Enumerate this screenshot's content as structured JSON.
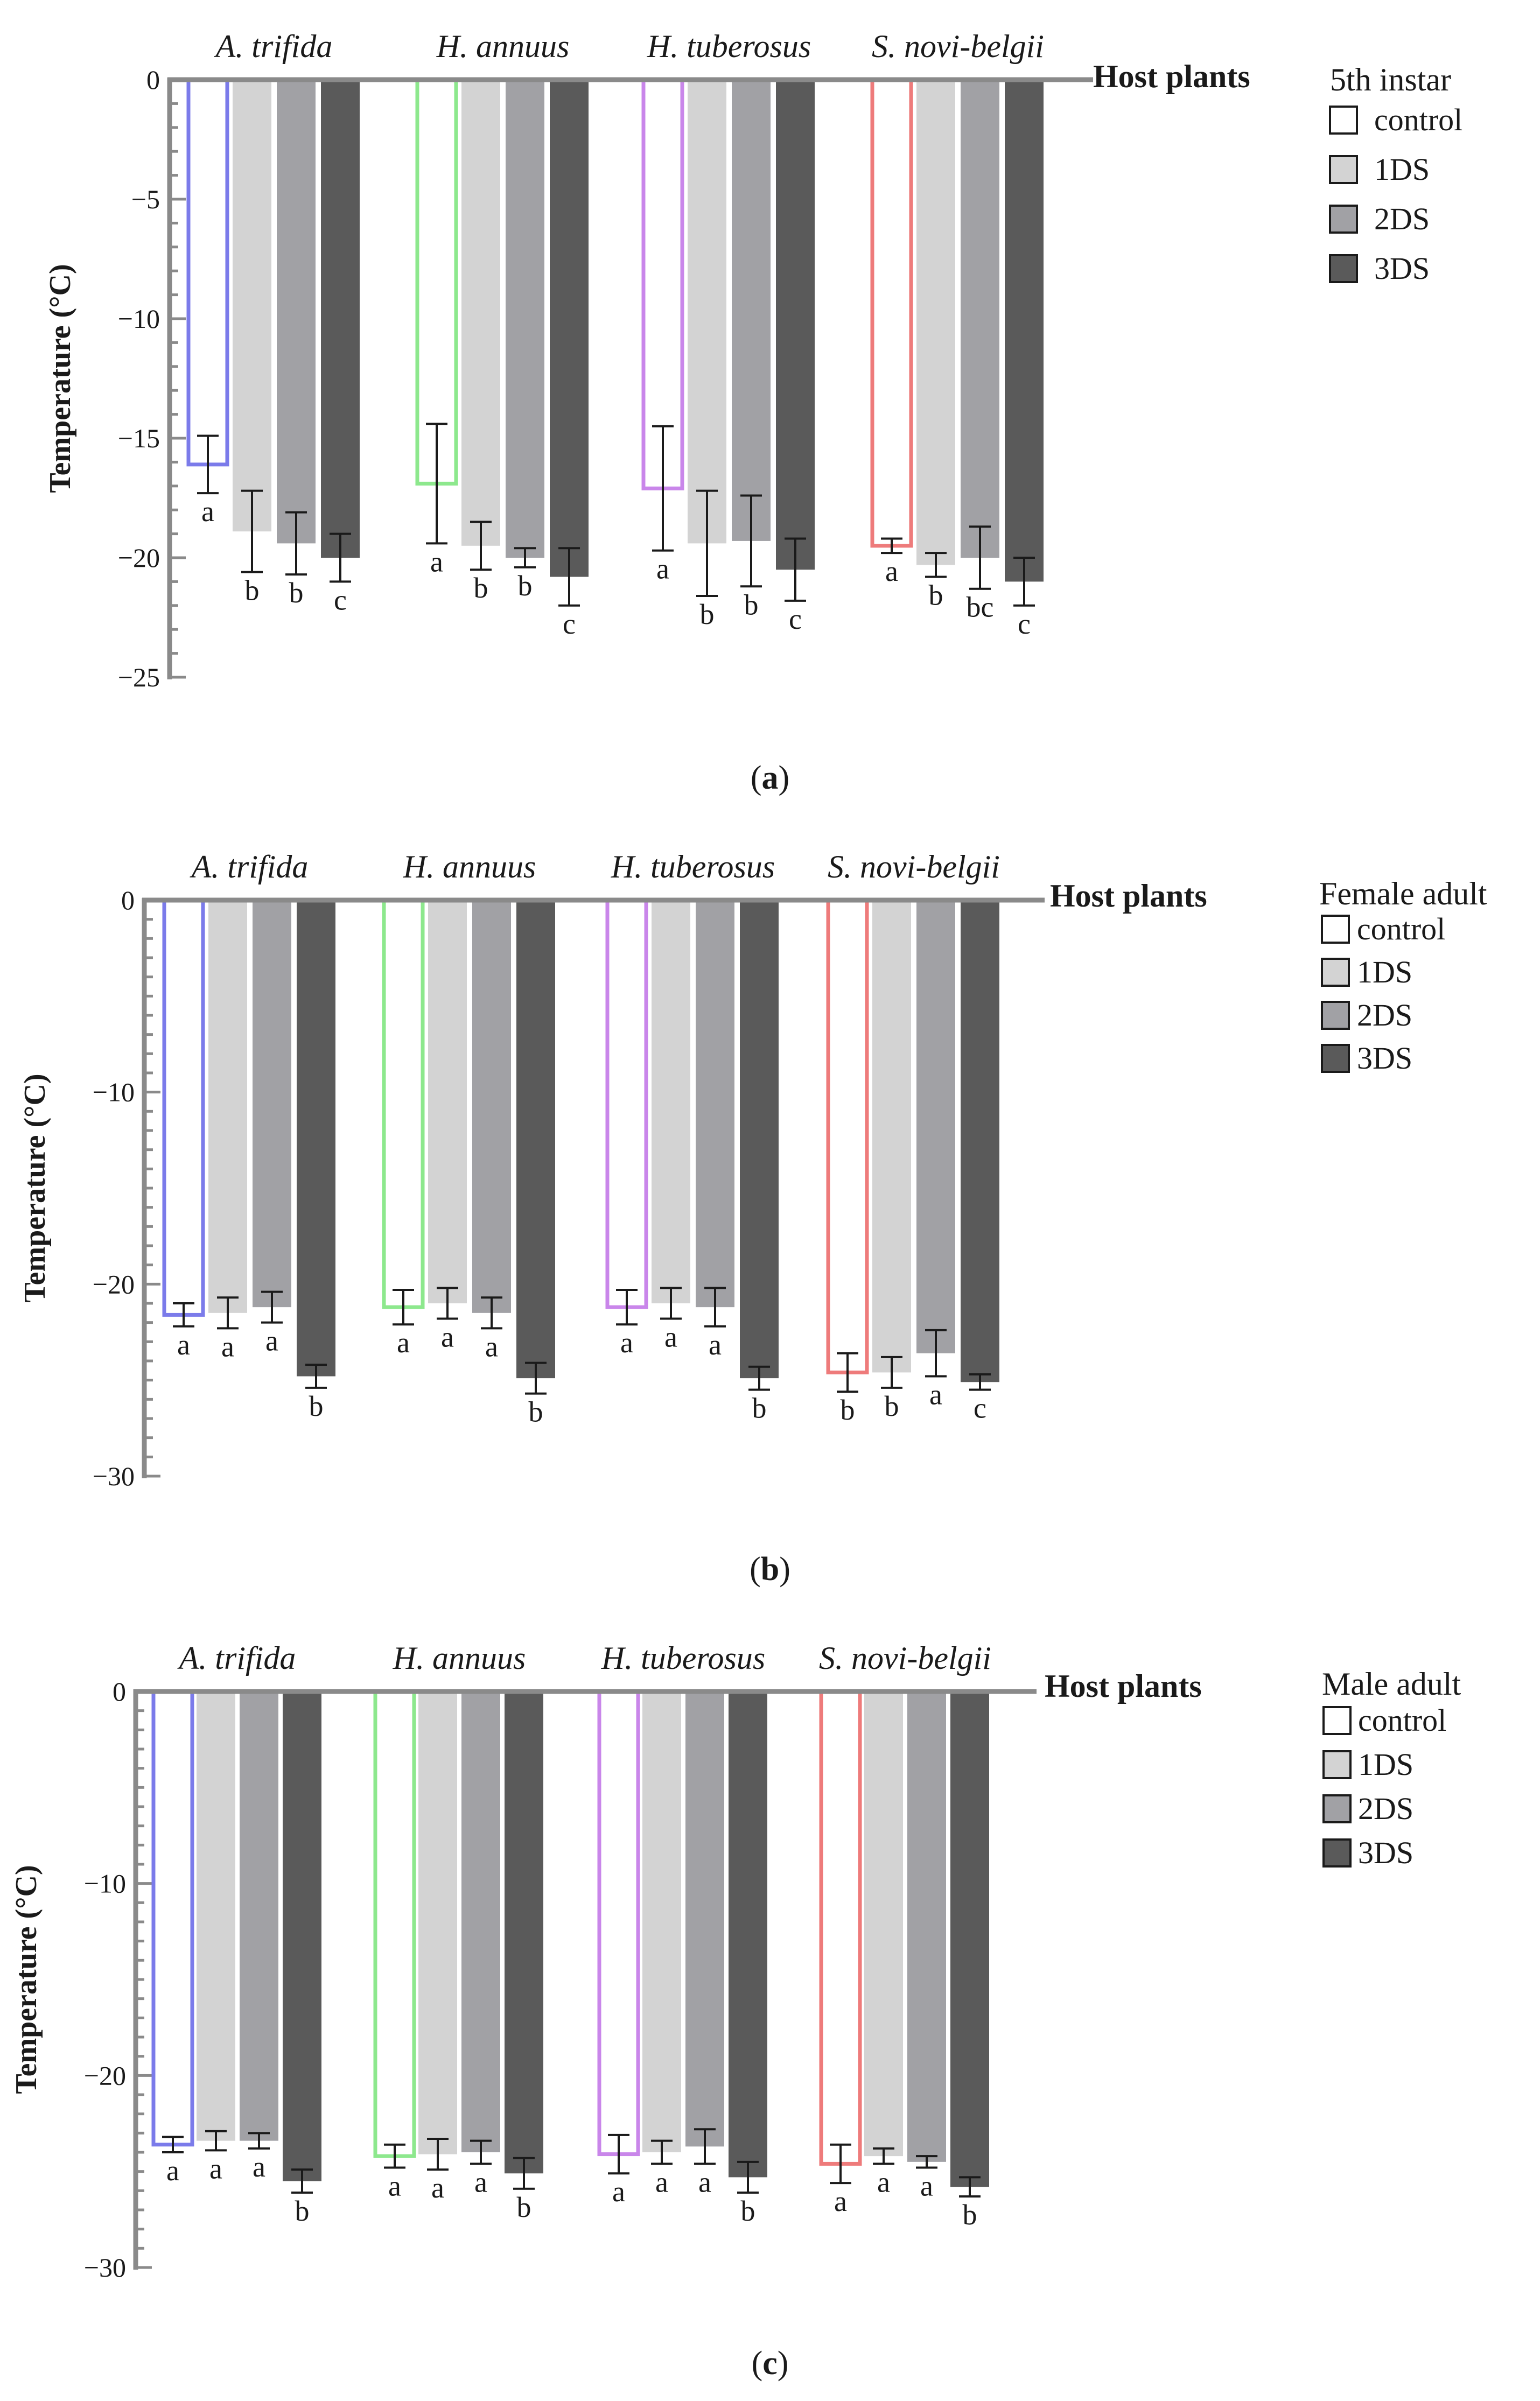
{
  "chart_data": [
    {
      "type": "bar",
      "panel_label": "(a)",
      "panel_letter": "a",
      "xlabel": "Host plants",
      "ylabel": "Temperature (°C)",
      "ylim": [
        -25,
        0
      ],
      "major_ticks": [
        0,
        -5,
        -10,
        -15,
        -20,
        -25
      ],
      "tick_labels": [
        "0",
        "−5",
        "−10",
        "−15",
        "−20",
        "−25"
      ],
      "categories": [
        "A. trifida",
        "H. annuus",
        "H. tuberosus",
        "S. novi-belgii"
      ],
      "legend_title": "5th instar",
      "series": [
        {
          "name": "control",
          "values": [
            -16.1,
            -16.9,
            -17.1,
            -19.5
          ],
          "errors": [
            1.2,
            2.5,
            2.6,
            0.3
          ],
          "letters": [
            "a",
            "a",
            "a",
            "a"
          ]
        },
        {
          "name": "1DS",
          "values": [
            -18.9,
            -19.5,
            -19.4,
            -20.3
          ],
          "errors": [
            1.7,
            1.0,
            2.2,
            0.5
          ],
          "letters": [
            "b",
            "b",
            "b",
            "b"
          ]
        },
        {
          "name": "2DS",
          "values": [
            -19.4,
            -20.0,
            -19.3,
            -20.0
          ],
          "errors": [
            1.3,
            0.4,
            1.9,
            1.3
          ],
          "letters": [
            "b",
            "b",
            "b",
            "bc"
          ]
        },
        {
          "name": "3DS",
          "values": [
            -20.0,
            -20.8,
            -20.5,
            -21.0
          ],
          "errors": [
            1.0,
            1.2,
            1.3,
            1.0
          ],
          "letters": [
            "c",
            "c",
            "c",
            "c"
          ]
        }
      ],
      "control_outline_colors": [
        "#7b7bea",
        "#8de88d",
        "#c986ea",
        "#ee7b7b"
      ],
      "fill_colors": [
        "#ffffff",
        "#d3d3d3",
        "#a1a1a5",
        "#5a5a5a"
      ]
    },
    {
      "type": "bar",
      "panel_label": "(b)",
      "panel_letter": "b",
      "xlabel": "Host plants",
      "ylabel": "Temperature (°C)",
      "ylim": [
        -30,
        0
      ],
      "major_ticks": [
        0,
        -10,
        -20,
        -30
      ],
      "tick_labels": [
        "0",
        "−10",
        "−20",
        "−30"
      ],
      "categories": [
        "A. trifida",
        "H. annuus",
        "H. tuberosus",
        "S. novi-belgii"
      ],
      "legend_title": "Female adult",
      "series": [
        {
          "name": "control",
          "values": [
            -21.6,
            -21.2,
            -21.2,
            -24.6
          ],
          "errors": [
            0.6,
            0.9,
            0.9,
            1.0
          ],
          "letters": [
            "a",
            "a",
            "a",
            "b"
          ]
        },
        {
          "name": "1DS",
          "values": [
            -21.5,
            -21.0,
            -21.0,
            -24.6
          ],
          "errors": [
            0.8,
            0.8,
            0.8,
            0.8
          ],
          "letters": [
            "a",
            "a",
            "a",
            "b"
          ]
        },
        {
          "name": "2DS",
          "values": [
            -21.2,
            -21.5,
            -21.2,
            -23.6
          ],
          "errors": [
            0.8,
            0.8,
            1.0,
            1.2
          ],
          "letters": [
            "a",
            "a",
            "a",
            "a"
          ]
        },
        {
          "name": "3DS",
          "values": [
            -24.8,
            -24.9,
            -24.9,
            -25.1
          ],
          "errors": [
            0.6,
            0.8,
            0.6,
            0.4
          ],
          "letters": [
            "b",
            "b",
            "b",
            "c"
          ]
        }
      ],
      "control_outline_colors": [
        "#7b7bea",
        "#8de88d",
        "#c986ea",
        "#ee7b7b"
      ],
      "fill_colors": [
        "#ffffff",
        "#d3d3d3",
        "#a1a1a5",
        "#5a5a5a"
      ]
    },
    {
      "type": "bar",
      "panel_label": "(c)",
      "panel_letter": "c",
      "xlabel": "Host plants",
      "ylabel": "Temperature (°C)",
      "ylim": [
        -30,
        0
      ],
      "major_ticks": [
        0,
        -10,
        -20,
        -30
      ],
      "tick_labels": [
        "0",
        "−10",
        "−20",
        "−30"
      ],
      "categories": [
        "A. trifida",
        "H. annuus",
        "H. tuberosus",
        "S. novi-belgii"
      ],
      "legend_title": "Male adult",
      "series": [
        {
          "name": "control",
          "values": [
            -23.6,
            -24.2,
            -24.1,
            -24.6
          ],
          "errors": [
            0.4,
            0.6,
            1.0,
            1.0
          ],
          "letters": [
            "a",
            "a",
            "a",
            "a"
          ]
        },
        {
          "name": "1DS",
          "values": [
            -23.4,
            -24.1,
            -24.0,
            -24.2
          ],
          "errors": [
            0.5,
            0.8,
            0.6,
            0.4
          ],
          "letters": [
            "a",
            "a",
            "a",
            "a"
          ]
        },
        {
          "name": "2DS",
          "values": [
            -23.4,
            -24.0,
            -23.7,
            -24.5
          ],
          "errors": [
            0.4,
            0.6,
            0.9,
            0.3
          ],
          "letters": [
            "a",
            "a",
            "a",
            "a"
          ]
        },
        {
          "name": "3DS",
          "values": [
            -25.5,
            -25.1,
            -25.3,
            -25.8
          ],
          "errors": [
            0.6,
            0.8,
            0.8,
            0.5
          ],
          "letters": [
            "b",
            "b",
            "b",
            "b"
          ]
        }
      ],
      "control_outline_colors": [
        "#7b7bea",
        "#8de88d",
        "#c986ea",
        "#ee7b7b"
      ],
      "fill_colors": [
        "#ffffff",
        "#d3d3d3",
        "#a1a1a5",
        "#5a5a5a"
      ]
    }
  ]
}
